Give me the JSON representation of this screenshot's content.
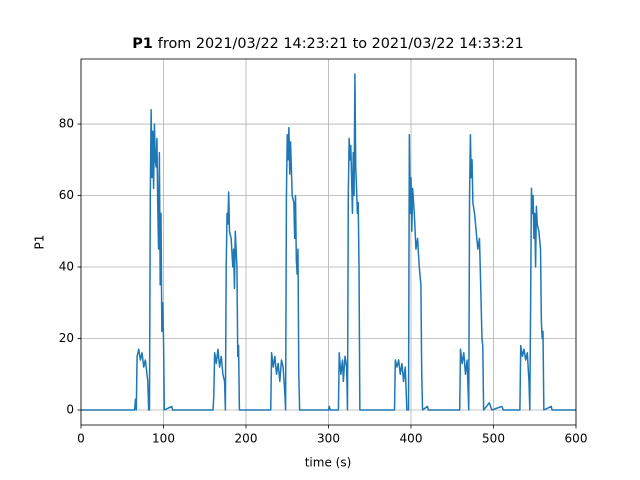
{
  "chart_data": {
    "type": "line",
    "title_name": "P1",
    "title_range": "from 2021/03/22 14:23:21 to 2021/03/22 14:33:21",
    "xlabel": "time (s)",
    "ylabel": "P1",
    "color": "#1f77b4",
    "grid": true,
    "xlim": [
      0,
      600
    ],
    "xticks": [
      0,
      100,
      200,
      300,
      400,
      500,
      600
    ],
    "ylim": [
      -4.2,
      98.2
    ],
    "yticks": [
      0,
      20,
      40,
      60,
      80
    ],
    "x": [
      0,
      65,
      66,
      67,
      68,
      70,
      72,
      74,
      76,
      78,
      80,
      81,
      82,
      83,
      84,
      85,
      86,
      87,
      88,
      89,
      90,
      91,
      92,
      93,
      94,
      95,
      96,
      97,
      98,
      99,
      100,
      101,
      110,
      111,
      160,
      161,
      162,
      164,
      166,
      168,
      170,
      172,
      174,
      175,
      176,
      177,
      178,
      179,
      180,
      182,
      184,
      185,
      186,
      187,
      188,
      189,
      190,
      191,
      192,
      200,
      230,
      231,
      233,
      235,
      237,
      239,
      241,
      243,
      245,
      247,
      248,
      249,
      250,
      251,
      252,
      253,
      254,
      256,
      258,
      259,
      260,
      261,
      262,
      263,
      264,
      265,
      300,
      301,
      302,
      312,
      313,
      315,
      317,
      318,
      320,
      322,
      323,
      324,
      325,
      326,
      327,
      328,
      329,
      330,
      331,
      332,
      333,
      334,
      335,
      336,
      337,
      338,
      380,
      381,
      383,
      385,
      387,
      389,
      391,
      393,
      395,
      397,
      398,
      399,
      400,
      401,
      402,
      404,
      406,
      408,
      410,
      412,
      413,
      414,
      420,
      421,
      459,
      460,
      462,
      464,
      466,
      468,
      469,
      470,
      471,
      472,
      473,
      474,
      475,
      477,
      479,
      481,
      483,
      485,
      486,
      487,
      488,
      495,
      498,
      510,
      512,
      532,
      533,
      535,
      537,
      539,
      541,
      543,
      544,
      545,
      546,
      547,
      548,
      549,
      550,
      551,
      552,
      553,
      555,
      557,
      558,
      559,
      560,
      561,
      570,
      571,
      600
    ],
    "values": [
      0,
      0,
      3,
      0,
      15,
      17,
      14,
      16,
      12,
      14,
      10,
      8,
      0,
      0,
      60,
      84,
      65,
      78,
      62,
      80,
      70,
      68,
      76,
      58,
      45,
      72,
      35,
      55,
      22,
      30,
      20,
      0,
      1,
      0,
      0,
      4,
      16,
      13,
      17,
      12,
      15,
      10,
      8,
      0,
      40,
      55,
      52,
      61,
      50,
      48,
      40,
      45,
      34,
      50,
      45,
      40,
      15,
      18,
      0,
      0,
      0,
      16,
      12,
      15,
      10,
      13,
      8,
      14,
      12,
      5,
      0,
      60,
      77,
      70,
      79,
      66,
      75,
      60,
      58,
      48,
      60,
      42,
      38,
      45,
      10,
      0,
      0,
      1,
      0,
      0,
      16,
      10,
      14,
      8,
      15,
      12,
      0,
      60,
      76,
      70,
      74,
      65,
      55,
      72,
      60,
      94,
      68,
      62,
      55,
      58,
      40,
      0,
      0,
      14,
      12,
      14,
      10,
      13,
      8,
      12,
      0,
      0,
      77,
      55,
      65,
      50,
      62,
      55,
      45,
      48,
      40,
      35,
      10,
      0,
      1,
      0,
      0,
      17,
      13,
      16,
      10,
      14,
      7,
      0,
      60,
      77,
      65,
      70,
      58,
      55,
      50,
      45,
      48,
      30,
      20,
      18,
      0,
      2,
      0,
      1,
      0,
      0,
      18,
      15,
      17,
      14,
      16,
      8,
      0,
      30,
      62,
      55,
      60,
      48,
      55,
      40,
      57,
      52,
      50,
      45,
      25,
      20,
      22,
      0,
      1,
      0,
      0
    ]
  }
}
